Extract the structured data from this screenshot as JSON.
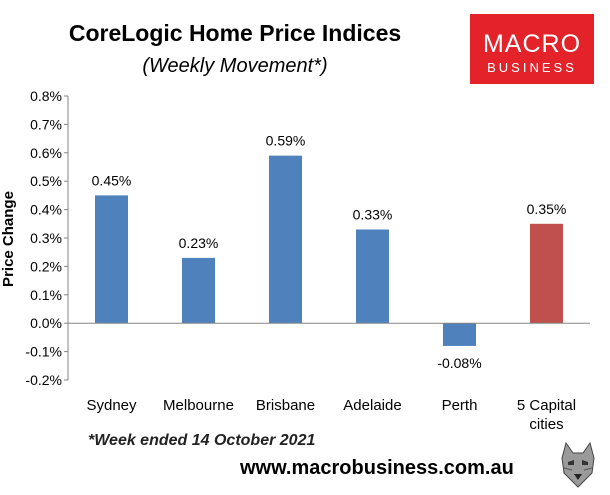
{
  "chart_data": {
    "type": "bar",
    "title": "CoreLogic Home Price Indices",
    "subtitle": "(Weekly Movement*)",
    "ylabel": "Price Change",
    "xlabel": "",
    "categories": [
      "Sydney",
      "Melbourne",
      "Brisbane",
      "Adelaide",
      "Perth",
      "5 Capital cities"
    ],
    "values": [
      0.45,
      0.23,
      0.59,
      0.33,
      -0.08,
      0.35
    ],
    "data_labels": [
      "0.45%",
      "0.23%",
      "0.59%",
      "0.33%",
      "-0.08%",
      "0.35%"
    ],
    "bar_colors": [
      "#4f81bd",
      "#4f81bd",
      "#4f81bd",
      "#4f81bd",
      "#4f81bd",
      "#c0504d"
    ],
    "ylim": [
      -0.2,
      0.8
    ],
    "yticks": [
      0.8,
      0.7,
      0.6,
      0.5,
      0.4,
      0.3,
      0.2,
      0.1,
      0.0,
      -0.1,
      -0.2
    ],
    "ytick_labels": [
      "0.8%",
      "0.7%",
      "0.6%",
      "0.5%",
      "0.4%",
      "0.3%",
      "0.2%",
      "0.1%",
      "0.0%",
      "-0.1%",
      "-0.2%"
    ],
    "grid": false
  },
  "footnote": "*Week ended 14 October 2021",
  "website": "www.macrobusiness.com.au",
  "logo": {
    "line1": "MACRO",
    "line2": "BUSINESS"
  },
  "colors": {
    "logo_bg": "#e3222a",
    "bar_main": "#4f81bd",
    "bar_highlight": "#c0504d"
  }
}
